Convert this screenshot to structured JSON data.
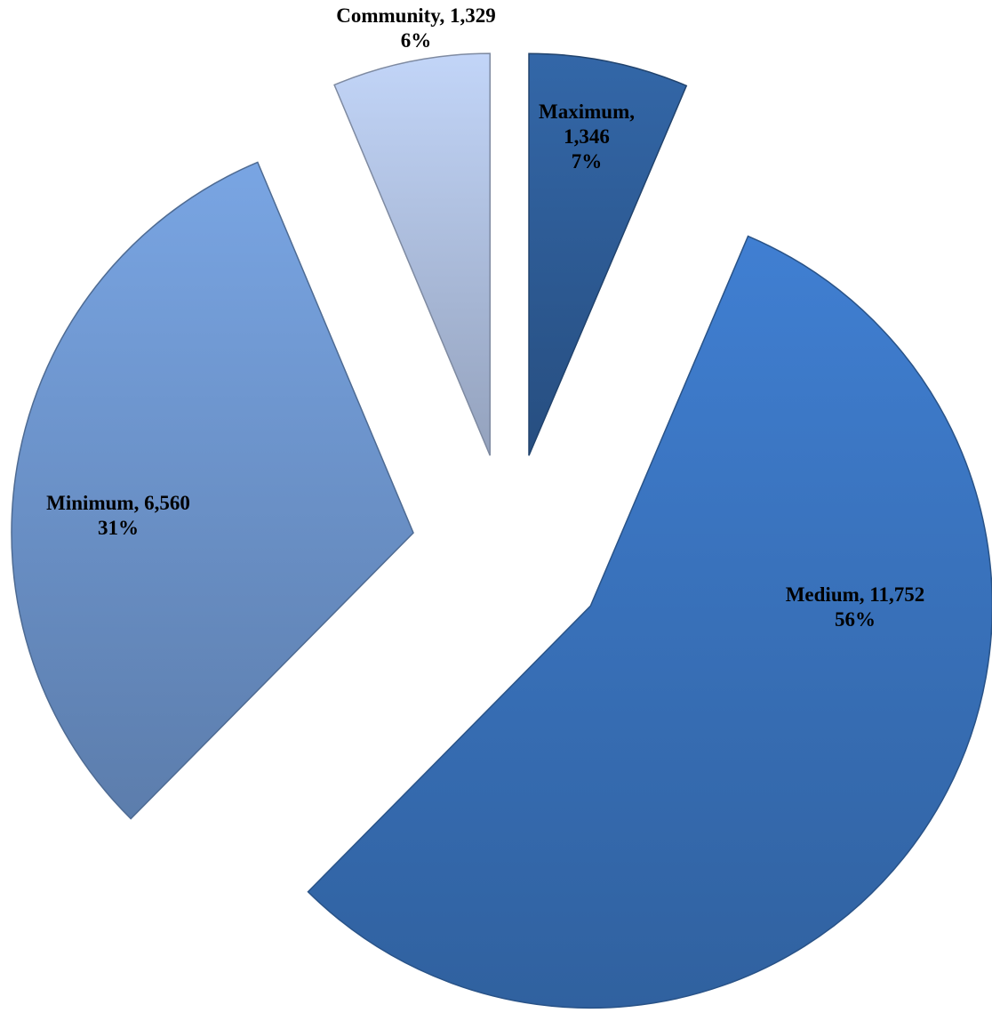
{
  "chart_data": {
    "type": "pie",
    "categories": [
      "Maximum",
      "Medium",
      "Minimum",
      "Community"
    ],
    "values": [
      1346,
      11752,
      6560,
      1329
    ],
    "value_labels": [
      "1,346",
      "11,752",
      "6,560",
      "1,329"
    ],
    "percentages": [
      7,
      56,
      31,
      6
    ],
    "percentage_labels": [
      "7%",
      "56%",
      "31%",
      "6%"
    ],
    "colors": [
      "#2f5f9c",
      "#3b76c2",
      "#7099d2",
      "#b4c5e6"
    ]
  }
}
